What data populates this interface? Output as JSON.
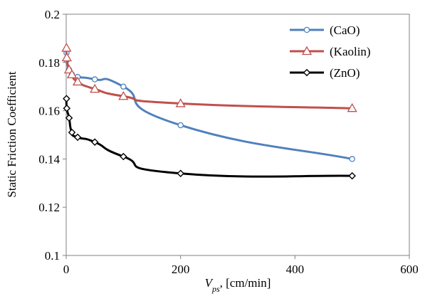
{
  "chart_data": {
    "type": "line",
    "xlabel_main": "V",
    "xlabel_sub": "ps",
    "xlabel_rest": ", [cm/min]",
    "ylabel": "Static Friction Coefficient",
    "xlim": [
      0,
      600
    ],
    "ylim": [
      0.1,
      0.2
    ],
    "x_ticks": [
      0,
      200,
      400,
      600
    ],
    "y_ticks": [
      0.1,
      0.12,
      0.14,
      0.16,
      0.18,
      0.2
    ],
    "x_tick_labels": [
      "0",
      "200",
      "400",
      "600"
    ],
    "y_tick_labels": [
      "0.1",
      "0.12",
      "0.14",
      "0.16",
      "0.18",
      "0.2"
    ],
    "grid": false,
    "legend_position": "top-right",
    "series": [
      {
        "name": "(CaO)",
        "color": "#4f81bd",
        "marker": "circle",
        "x": [
          0.5,
          1,
          5,
          10,
          20,
          50,
          100,
          200,
          500
        ],
        "y": [
          0.184,
          0.181,
          0.177,
          0.175,
          0.174,
          0.173,
          0.17,
          0.154,
          0.14
        ]
      },
      {
        "name": "(Kaolin)",
        "color": "#c0504d",
        "marker": "triangle",
        "x": [
          0.5,
          1,
          5,
          10,
          20,
          50,
          100,
          200,
          500
        ],
        "y": [
          0.186,
          0.182,
          0.177,
          0.175,
          0.172,
          0.169,
          0.166,
          0.163,
          0.161
        ]
      },
      {
        "name": "(ZnO)",
        "color": "#000000",
        "marker": "diamond",
        "x": [
          0.5,
          1,
          5,
          10,
          20,
          50,
          100,
          200,
          500
        ],
        "y": [
          0.165,
          0.161,
          0.157,
          0.151,
          0.149,
          0.147,
          0.141,
          0.134,
          0.133
        ]
      }
    ]
  }
}
